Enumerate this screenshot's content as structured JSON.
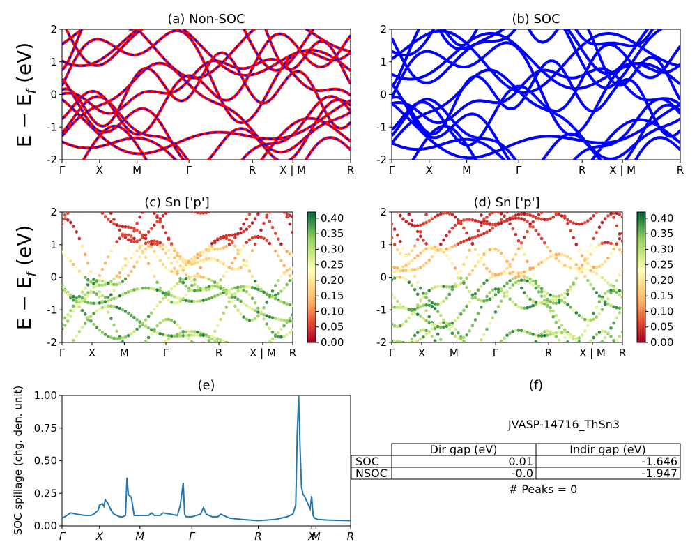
{
  "figure": {
    "ylabel": "E − E_f (eV)"
  },
  "chart_data": [
    {
      "id": "a",
      "type": "line",
      "title": "(a) Non-SOC",
      "ylabel": "E − E_f (eV)",
      "ylim": [
        -2,
        2
      ],
      "yticks": [
        -2,
        -1,
        0,
        1,
        2
      ],
      "xtick_labels": [
        "Γ",
        "X",
        "M",
        "Γ",
        "R",
        "X | M",
        "R"
      ],
      "kpath_positions": [
        0,
        0.13,
        0.26,
        0.44,
        0.66,
        0.8,
        1.0
      ],
      "series": [
        {
          "style": "red solid with blue dashes",
          "bands": "band structure, many bands between -2 and 2 eV"
        }
      ],
      "colors": {
        "primary": "#ff0000",
        "overlay": "#0000ff"
      }
    },
    {
      "id": "b",
      "type": "line",
      "title": "(b) SOC",
      "ylim": [
        -2,
        2
      ],
      "yticks": [
        -2,
        -1,
        0,
        1,
        2
      ],
      "xtick_labels": [
        "Γ",
        "X",
        "M",
        "Γ",
        "R",
        "X | M",
        "R"
      ],
      "kpath_positions": [
        0,
        0.13,
        0.26,
        0.44,
        0.66,
        0.8,
        1.0
      ],
      "colors": {
        "primary": "#0000ff"
      }
    },
    {
      "id": "c",
      "type": "scatter",
      "title": "(c)  Sn ['p']",
      "ylabel": "E − E_f (eV)",
      "ylim": [
        -2,
        2
      ],
      "yticks": [
        -2,
        -1,
        0,
        1,
        2
      ],
      "xtick_labels": [
        "Γ",
        "X",
        "M",
        "Γ",
        "R",
        "X | M",
        "R"
      ],
      "kpath_positions": [
        0,
        0.13,
        0.27,
        0.45,
        0.68,
        0.87,
        1.0
      ],
      "colorbar": {
        "min": 0.0,
        "max": 0.42,
        "ticks": [
          "0.00",
          "0.05",
          "0.10",
          "0.15",
          "0.20",
          "0.25",
          "0.30",
          "0.35",
          "0.40"
        ],
        "cmap": "RdYlGn"
      }
    },
    {
      "id": "d",
      "type": "scatter",
      "title": "(d) Sn ['p']",
      "ylim": [
        -2,
        2
      ],
      "yticks": [
        -2,
        -1,
        0,
        1,
        2
      ],
      "xtick_labels": [
        "Γ",
        "X",
        "M",
        "Γ",
        "R",
        "X | M",
        "R"
      ],
      "kpath_positions": [
        0,
        0.13,
        0.27,
        0.45,
        0.68,
        0.87,
        1.0
      ],
      "colorbar": {
        "min": 0.0,
        "max": 0.42,
        "ticks": [
          "0.00",
          "0.05",
          "0.10",
          "0.15",
          "0.20",
          "0.25",
          "0.30",
          "0.35",
          "0.40"
        ],
        "cmap": "RdYlGn"
      }
    },
    {
      "id": "e",
      "type": "line",
      "title": "(e)",
      "ylabel": "SOC spillage (chg. den. unit)",
      "ylim": [
        0,
        1
      ],
      "yticks": [
        "0.00",
        "0.25",
        "0.50",
        "0.75",
        "1.00"
      ],
      "xtick_labels": [
        "Γ",
        "X",
        "M",
        "Γ",
        "R",
        "X",
        "M",
        "R"
      ],
      "kpath_positions": [
        0,
        0.13,
        0.27,
        0.45,
        0.68,
        0.865,
        0.88,
        1.0
      ],
      "x": [
        0,
        0.01,
        0.03,
        0.05,
        0.08,
        0.1,
        0.11,
        0.125,
        0.13,
        0.14,
        0.145,
        0.15,
        0.16,
        0.17,
        0.18,
        0.2,
        0.21,
        0.22,
        0.225,
        0.23,
        0.24,
        0.25,
        0.27,
        0.3,
        0.31,
        0.32,
        0.34,
        0.35,
        0.4,
        0.41,
        0.42,
        0.425,
        0.43,
        0.44,
        0.45,
        0.48,
        0.49,
        0.5,
        0.52,
        0.54,
        0.55,
        0.56,
        0.58,
        0.62,
        0.68,
        0.74,
        0.78,
        0.8,
        0.81,
        0.815,
        0.82,
        0.825,
        0.83,
        0.835,
        0.84,
        0.85,
        0.86,
        0.865,
        0.87,
        0.875,
        0.885,
        0.92,
        1.0
      ],
      "values": [
        0.06,
        0.07,
        0.1,
        0.09,
        0.08,
        0.08,
        0.09,
        0.12,
        0.16,
        0.17,
        0.15,
        0.2,
        0.17,
        0.12,
        0.09,
        0.07,
        0.07,
        0.08,
        0.37,
        0.24,
        0.22,
        0.08,
        0.08,
        0.08,
        0.1,
        0.08,
        0.08,
        0.1,
        0.08,
        0.16,
        0.33,
        0.09,
        0.07,
        0.07,
        0.07,
        0.09,
        0.14,
        0.09,
        0.07,
        0.07,
        0.09,
        0.08,
        0.06,
        0.05,
        0.04,
        0.05,
        0.07,
        0.09,
        0.16,
        0.7,
        1.0,
        0.6,
        0.3,
        0.24,
        0.23,
        0.18,
        0.13,
        0.23,
        0.08,
        0.06,
        0.05,
        0.045,
        0.04
      ],
      "colors": {
        "line": "#1f77b4"
      }
    }
  ],
  "panel_f": {
    "title": "(f)",
    "material": "JVASP-14716_ThSn3",
    "table": {
      "headers": [
        "Dir gap (eV)",
        "Indir gap (eV)"
      ],
      "rows": [
        {
          "label": "SOC",
          "dir": "0.01",
          "indir": "-1.646"
        },
        {
          "label": "NSOC",
          "dir": "-0.0",
          "indir": "-1.947"
        }
      ]
    },
    "peaks": "# Peaks = 0"
  }
}
